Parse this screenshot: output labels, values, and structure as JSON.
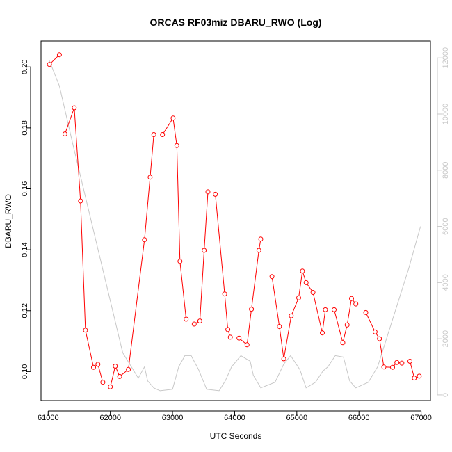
{
  "chart_data": {
    "type": "line",
    "title": "ORCAS RF03miz DBARU_RWO (Log)",
    "xlabel": "UTC Seconds",
    "ylabel": "DBARU_RWO",
    "xlim": [
      60885,
      67150
    ],
    "ylim": [
      0.0905,
      0.2085
    ],
    "y2lim": [
      -200,
      12600
    ],
    "x_ticks": [
      61000,
      62000,
      63000,
      64000,
      65000,
      66000,
      67000
    ],
    "x_tick_labels": [
      "61000",
      "62000",
      "63000",
      "64000",
      "65000",
      "66000",
      "67000"
    ],
    "y_ticks": [
      0.1,
      0.12,
      0.14,
      0.16,
      0.18,
      0.2
    ],
    "y_tick_labels": [
      "0.10",
      "0.12",
      "0.14",
      "0.16",
      "0.18",
      "0.20"
    ],
    "y2_ticks": [
      0,
      2000,
      4000,
      6000,
      8000,
      10000,
      12000
    ],
    "y2_tick_labels": [
      "0",
      "2000",
      "4000",
      "6000",
      "8000",
      "10000",
      "12000"
    ],
    "grid": false,
    "colors": {
      "series": "#ff0000",
      "altitude": "#c8c8c8",
      "axes": "#000000",
      "right_axis": "#c8c8c8"
    },
    "series": [
      {
        "axis": "left",
        "style": "line+markers",
        "segments": [
          {
            "x": [
              61020,
              61180
            ],
            "y": [
              0.2008,
              0.204
            ]
          },
          {
            "x": [
              61270,
              61420,
              61520,
              61600,
              61730,
              61800,
              61880
            ],
            "y": [
              0.178,
              0.1866,
              0.156,
              0.1136,
              0.1014,
              0.1024,
              0.0965
            ]
          },
          {
            "x": [
              62000,
              62080,
              62150,
              62290,
              62550,
              62640,
              62700
            ],
            "y": [
              0.095,
              0.1018,
              0.0984,
              0.1007,
              0.1433,
              0.1638,
              0.1778
            ]
          },
          {
            "x": [
              62840,
              63010,
              63070,
              63120,
              63220
            ],
            "y": [
              0.1778,
              0.1832,
              0.1742,
              0.1362,
              0.1172
            ]
          },
          {
            "x": [
              63350,
              63440,
              63510,
              63570
            ],
            "y": [
              0.1156,
              0.1166,
              0.1398,
              0.159
            ]
          },
          {
            "x": [
              63690,
              63840,
              63890,
              63930
            ],
            "y": [
              0.1582,
              0.1255,
              0.1138,
              0.1113
            ]
          },
          {
            "x": [
              64070,
              64200,
              64270,
              64390,
              64420
            ],
            "y": [
              0.111,
              0.1088,
              0.1205,
              0.1398,
              0.1435
            ]
          },
          {
            "x": [
              64600,
              64720,
              64790,
              64910,
              65030,
              65090,
              65150,
              65260,
              65410,
              65460
            ],
            "y": [
              0.1312,
              0.1148,
              0.1042,
              0.1183,
              0.1242,
              0.133,
              0.1292,
              0.126,
              0.1127,
              0.1203
            ]
          },
          {
            "x": [
              65600,
              65740,
              65810,
              65880,
              65950
            ],
            "y": [
              0.1203,
              0.1095,
              0.1153,
              0.124,
              0.1222
            ]
          },
          {
            "x": [
              66110,
              66260,
              66330,
              66400,
              66540,
              66610,
              66690
            ],
            "y": [
              0.1194,
              0.113,
              0.1108,
              0.1015,
              0.1014,
              0.103,
              0.1028
            ]
          },
          {
            "x": [
              66820,
              66890,
              66970
            ],
            "y": [
              0.1034,
              0.0979,
              0.0985
            ]
          }
        ]
      },
      {
        "axis": "right",
        "style": "line",
        "x": [
          61020,
          61180,
          61400,
          62200,
          62450,
          62550,
          62600,
          62700,
          62800,
          63000,
          63100,
          63200,
          63300,
          63420,
          63550,
          63750,
          63850,
          63950,
          64100,
          64250,
          64300,
          64420,
          64650,
          64790,
          64900,
          65050,
          65150,
          65300,
          65420,
          65500,
          65620,
          65750,
          65850,
          65950,
          66150,
          66300,
          66800,
          66990
        ],
        "y": [
          11900,
          11000,
          8900,
          1500,
          600,
          1000,
          500,
          250,
          150,
          200,
          1000,
          1400,
          1400,
          900,
          200,
          150,
          500,
          1000,
          1400,
          1200,
          700,
          250,
          450,
          1100,
          1400,
          900,
          250,
          450,
          850,
          1000,
          1400,
          1350,
          500,
          250,
          450,
          1000,
          4500,
          6000
        ]
      }
    ]
  }
}
